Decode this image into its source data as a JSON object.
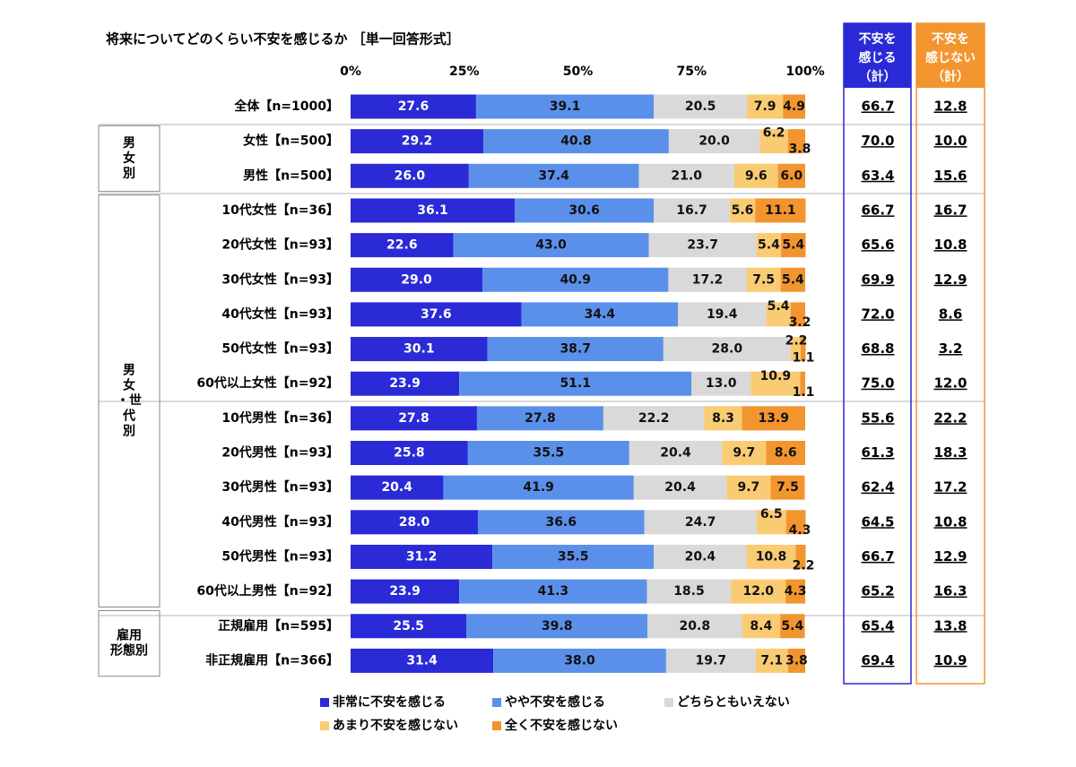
{
  "chart_data": {
    "type": "bar",
    "orientation": "horizontal",
    "stacked": true,
    "title": "将来についてどのくらい不安を感じるか ［単一回答形式］",
    "xlim": [
      0,
      100
    ],
    "ticks": [
      "0%",
      "25%",
      "50%",
      "75%",
      "100%"
    ],
    "legend_position": "bottom",
    "series": [
      {
        "name": "非常に不安を感じる",
        "color": "#2a2ad6"
      },
      {
        "name": "やや不安を感じる",
        "color": "#5b90ea"
      },
      {
        "name": "どちらともいえない",
        "color": "#d9d9d9"
      },
      {
        "name": "あまり不安を感じない",
        "color": "#f9cb73"
      },
      {
        "name": "全く不安を感じない",
        "color": "#f2952f"
      }
    ],
    "groups": [
      {
        "label": "",
        "rows": [
          0
        ]
      },
      {
        "label": "男女別",
        "rows": [
          1,
          2
        ]
      },
      {
        "label": "男女・世代別",
        "rows": [
          3,
          4,
          5,
          6,
          7,
          8,
          9,
          10,
          11,
          12,
          13,
          14
        ]
      },
      {
        "label": "雇用形態別",
        "rows": [
          15,
          16
        ]
      }
    ],
    "rows": [
      {
        "label": "全体【n=1000】",
        "values": [
          "27.6",
          "39.1",
          "20.5",
          "7.9",
          "4.9"
        ],
        "anxious_total": "66.7",
        "not_anxious_total": "12.8"
      },
      {
        "label": "女性【n=500】",
        "values": [
          "29.2",
          "40.8",
          "20.0",
          "6.2",
          "3.8"
        ],
        "anxious_total": "70.0",
        "not_anxious_total": "10.0"
      },
      {
        "label": "男性【n=500】",
        "values": [
          "26.0",
          "37.4",
          "21.0",
          "9.6",
          "6.0"
        ],
        "anxious_total": "63.4",
        "not_anxious_total": "15.6"
      },
      {
        "label": "10代女性【n=36】",
        "values": [
          "36.1",
          "30.6",
          "16.7",
          "5.6",
          "11.1"
        ],
        "anxious_total": "66.7",
        "not_anxious_total": "16.7"
      },
      {
        "label": "20代女性【n=93】",
        "values": [
          "22.6",
          "43.0",
          "23.7",
          "5.4",
          "5.4"
        ],
        "anxious_total": "65.6",
        "not_anxious_total": "10.8"
      },
      {
        "label": "30代女性【n=93】",
        "values": [
          "29.0",
          "40.9",
          "17.2",
          "7.5",
          "5.4"
        ],
        "anxious_total": "69.9",
        "not_anxious_total": "12.9"
      },
      {
        "label": "40代女性【n=93】",
        "values": [
          "37.6",
          "34.4",
          "19.4",
          "5.4",
          "3.2"
        ],
        "anxious_total": "72.0",
        "not_anxious_total": "8.6"
      },
      {
        "label": "50代女性【n=93】",
        "values": [
          "30.1",
          "38.7",
          "28.0",
          "2.2",
          "1.1"
        ],
        "anxious_total": "68.8",
        "not_anxious_total": "3.2"
      },
      {
        "label": "60代以上女性【n=92】",
        "values": [
          "23.9",
          "51.1",
          "13.0",
          "10.9",
          "1.1"
        ],
        "anxious_total": "75.0",
        "not_anxious_total": "12.0"
      },
      {
        "label": "10代男性【n=36】",
        "values": [
          "27.8",
          "27.8",
          "22.2",
          "8.3",
          "13.9"
        ],
        "anxious_total": "55.6",
        "not_anxious_total": "22.2"
      },
      {
        "label": "20代男性【n=93】",
        "values": [
          "25.8",
          "35.5",
          "20.4",
          "9.7",
          "8.6"
        ],
        "anxious_total": "61.3",
        "not_anxious_total": "18.3"
      },
      {
        "label": "30代男性【n=93】",
        "values": [
          "20.4",
          "41.9",
          "20.4",
          "9.7",
          "7.5"
        ],
        "anxious_total": "62.4",
        "not_anxious_total": "17.2"
      },
      {
        "label": "40代男性【n=93】",
        "values": [
          "28.0",
          "36.6",
          "24.7",
          "6.5",
          "4.3"
        ],
        "anxious_total": "64.5",
        "not_anxious_total": "10.8"
      },
      {
        "label": "50代男性【n=93】",
        "values": [
          "31.2",
          "35.5",
          "20.4",
          "10.8",
          "2.2"
        ],
        "anxious_total": "66.7",
        "not_anxious_total": "12.9"
      },
      {
        "label": "60代以上男性【n=92】",
        "values": [
          "23.9",
          "41.3",
          "18.5",
          "12.0",
          "4.3"
        ],
        "anxious_total": "65.2",
        "not_anxious_total": "16.3"
      },
      {
        "label": "正規雇用【n=595】",
        "values": [
          "25.5",
          "39.8",
          "20.8",
          "8.4",
          "5.4"
        ],
        "anxious_total": "65.4",
        "not_anxious_total": "13.8"
      },
      {
        "label": "非正規雇用【n=366】",
        "values": [
          "31.4",
          "38.0",
          "19.7",
          "7.1",
          "3.8"
        ],
        "anxious_total": "69.4",
        "not_anxious_total": "10.9"
      }
    ],
    "totals_columns": [
      {
        "header": [
          "不安を",
          "感じる",
          "（計）"
        ],
        "color": "#2a2ad6"
      },
      {
        "header": [
          "不安を",
          "感じない",
          "（計）"
        ],
        "color": "#f2952f"
      }
    ]
  }
}
